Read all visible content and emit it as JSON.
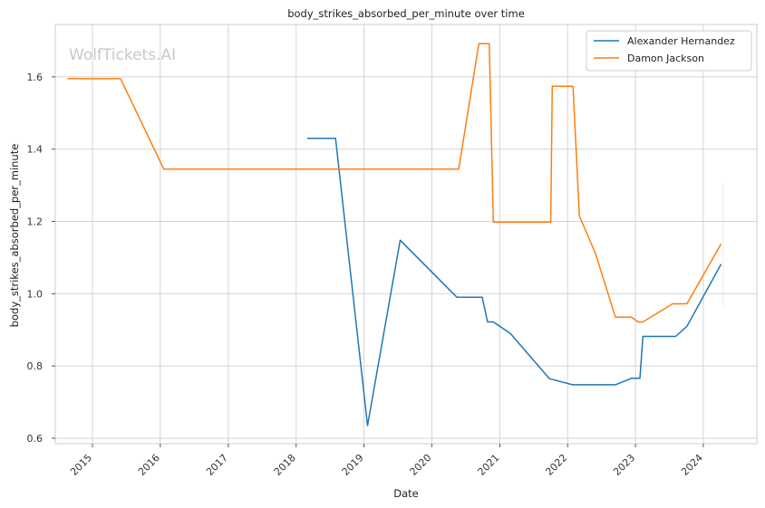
{
  "chart_data": {
    "type": "line",
    "title": "body_strikes_absorbed_per_minute over time",
    "xlabel": "Date",
    "ylabel": "body_strikes_absorbed_per_minute",
    "watermark": "WolfTickets.AI",
    "x_ticks": [
      "2015",
      "2016",
      "2017",
      "2018",
      "2019",
      "2020",
      "2021",
      "2022",
      "2023",
      "2024"
    ],
    "y_ticks": [
      "0.6",
      "0.8",
      "1.0",
      "1.2",
      "1.4",
      "1.6"
    ],
    "xlim": [
      "2014-06-15",
      "2024-10-15"
    ],
    "ylim": [
      0.585,
      1.745
    ],
    "grid": true,
    "legend_position": "top-right",
    "series": [
      {
        "name": "Alexander Hernandez",
        "color": "#1f77b4",
        "points": [
          [
            "2018-03-01",
            1.43
          ],
          [
            "2018-08-01",
            1.43
          ],
          [
            "2019-01-20",
            0.635
          ],
          [
            "2019-07-15",
            1.148
          ],
          [
            "2020-05-15",
            0.99
          ],
          [
            "2020-09-28",
            0.99
          ],
          [
            "2020-10-27",
            0.922
          ],
          [
            "2020-11-27",
            0.922
          ],
          [
            "2021-02-27",
            0.89
          ],
          [
            "2021-09-25",
            0.765
          ],
          [
            "2022-01-27",
            0.748
          ],
          [
            "2022-09-15",
            0.748
          ],
          [
            "2022-12-10",
            0.766
          ],
          [
            "2023-01-25",
            0.766
          ],
          [
            "2023-02-10",
            0.882
          ],
          [
            "2023-08-05",
            0.882
          ],
          [
            "2023-10-05",
            0.91
          ],
          [
            "2024-04-06",
            1.082
          ]
        ]
      },
      {
        "name": "Damon Jackson",
        "color": "#ff7f0e",
        "points": [
          [
            "2014-08-20",
            1.595
          ],
          [
            "2015-06-01",
            1.595
          ],
          [
            "2016-01-20",
            1.345
          ],
          [
            "2020-05-25",
            1.345
          ],
          [
            "2020-09-10",
            1.692
          ],
          [
            "2020-11-05",
            1.692
          ],
          [
            "2020-11-27",
            1.198
          ],
          [
            "2021-10-02",
            1.198
          ],
          [
            "2021-10-10",
            1.574
          ],
          [
            "2022-01-30",
            1.574
          ],
          [
            "2022-03-05",
            1.215
          ],
          [
            "2022-06-01",
            1.11
          ],
          [
            "2022-09-15",
            0.935
          ],
          [
            "2022-12-10",
            0.935
          ],
          [
            "2023-01-15",
            0.922
          ],
          [
            "2023-02-10",
            0.922
          ],
          [
            "2023-07-20",
            0.972
          ],
          [
            "2023-10-05",
            0.972
          ],
          [
            "2024-04-06",
            1.138
          ]
        ]
      }
    ]
  }
}
